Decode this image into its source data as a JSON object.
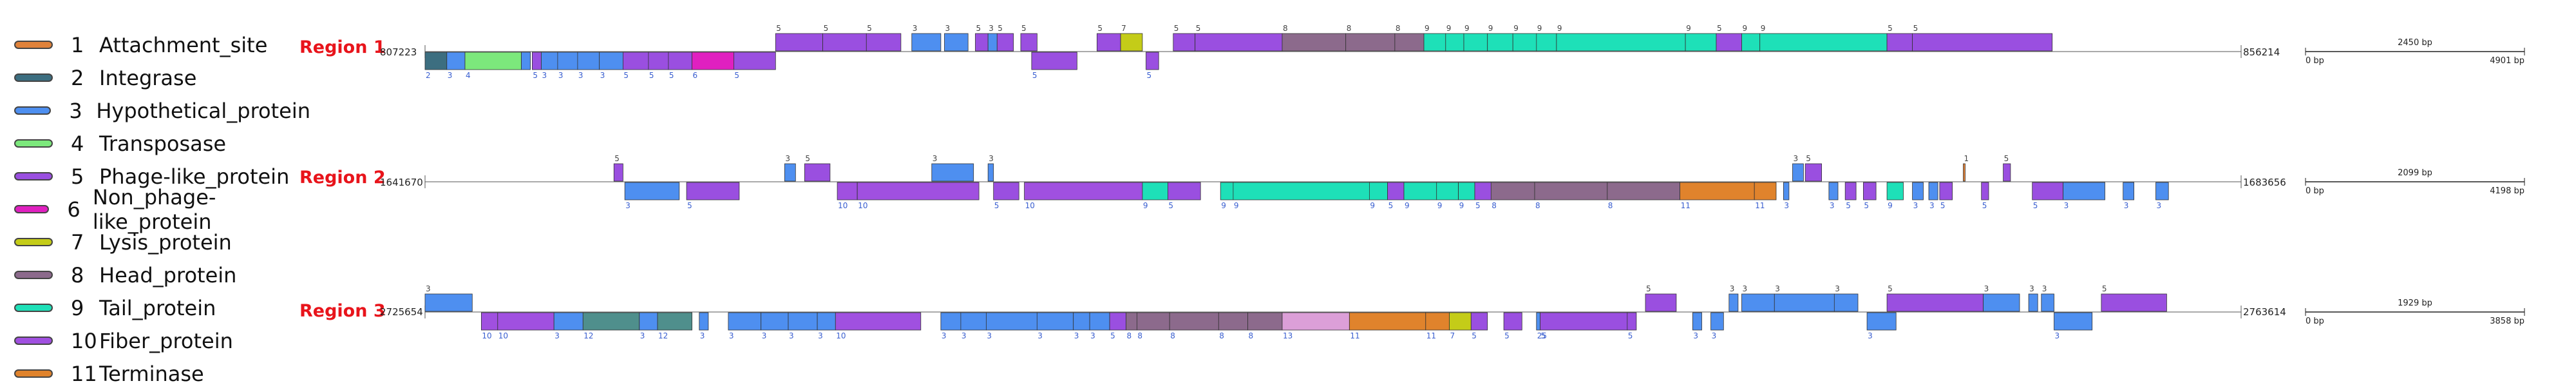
{
  "legend": [
    {
      "num": "1",
      "label": "Attachment_site",
      "color": "#e0823a"
    },
    {
      "num": "2",
      "label": "Integrase",
      "color": "#3c6e80"
    },
    {
      "num": "3",
      "label": "Hypothetical_protein",
      "color": "#4e8ff0"
    },
    {
      "num": "4",
      "label": "Transposase",
      "color": "#7ce87c"
    },
    {
      "num": "5",
      "label": "Phage-like_protein",
      "color": "#9a4fe0"
    },
    {
      "num": "6",
      "label": "Non_phage-like_protein",
      "color": "#e020c0"
    },
    {
      "num": "7",
      "label": "Lysis_protein",
      "color": "#c4cc18"
    },
    {
      "num": "8",
      "label": "Head_protein",
      "color": "#8c6a8c"
    },
    {
      "num": "9",
      "label": "Tail_protein",
      "color": "#1ee0b8"
    },
    {
      "num": "10",
      "label": "Fiber_protein",
      "color": "#a050e0"
    },
    {
      "num": "11",
      "label": "Terminase",
      "color": "#e0832c"
    }
  ],
  "regions": [
    {
      "label": "Region 1",
      "start": "807223",
      "end": "856214",
      "scale": {
        "mid": "2450 bp",
        "left": "0 bp",
        "right": "4901 bp"
      },
      "genes": [
        [
          0,
          1.2,
          "b",
          "2"
        ],
        [
          1.2,
          2.2,
          "b",
          "3"
        ],
        [
          2.2,
          5.3,
          "b",
          "4"
        ],
        [
          5.3,
          5.8,
          "b",
          ""
        ],
        [
          5.9,
          6.4,
          "b",
          "5"
        ],
        [
          6.4,
          7.3,
          "b",
          "3"
        ],
        [
          7.3,
          8.4,
          "b",
          "3"
        ],
        [
          8.4,
          9.6,
          "b",
          "3"
        ],
        [
          9.6,
          10.9,
          "b",
          "3"
        ],
        [
          10.9,
          12.3,
          "b",
          "5"
        ],
        [
          12.3,
          13.4,
          "b",
          "5"
        ],
        [
          13.4,
          14.7,
          "b",
          "5"
        ],
        [
          14.7,
          17.0,
          "b",
          "6"
        ],
        [
          17.0,
          19.3,
          "b",
          "5"
        ],
        [
          19.3,
          21.9,
          "t",
          "5"
        ],
        [
          21.9,
          24.3,
          "t",
          "5"
        ],
        [
          24.3,
          26.2,
          "t",
          "5"
        ],
        [
          26.8,
          28.4,
          "t",
          "3"
        ],
        [
          28.6,
          29.9,
          "t",
          "3"
        ],
        [
          30.3,
          31.0,
          "t",
          "5"
        ],
        [
          31.0,
          31.5,
          "t",
          "3"
        ],
        [
          31.5,
          32.4,
          "t",
          "5"
        ],
        [
          32.8,
          33.7,
          "t",
          "5"
        ],
        [
          33.4,
          35.9,
          "b",
          "5"
        ],
        [
          37.0,
          38.3,
          "t",
          "5"
        ],
        [
          38.3,
          39.5,
          "t",
          "7"
        ],
        [
          39.7,
          40.4,
          "b",
          "5"
        ],
        [
          41.2,
          42.4,
          "t",
          "5"
        ],
        [
          42.4,
          47.2,
          "t",
          "5"
        ],
        [
          47.2,
          50.7,
          "t",
          "8"
        ],
        [
          50.7,
          53.4,
          "t",
          "8"
        ],
        [
          53.4,
          55.0,
          "t",
          "8"
        ],
        [
          55.0,
          56.2,
          "t",
          "9"
        ],
        [
          56.2,
          57.2,
          "t",
          "9"
        ],
        [
          57.2,
          58.5,
          "t",
          "9"
        ],
        [
          58.5,
          59.9,
          "t",
          "9"
        ],
        [
          59.9,
          61.2,
          "t",
          "9"
        ],
        [
          61.2,
          62.3,
          "t",
          "9"
        ],
        [
          62.3,
          69.4,
          "t",
          "9"
        ],
        [
          69.4,
          71.1,
          "t",
          "9"
        ],
        [
          71.1,
          72.5,
          "t",
          "5"
        ],
        [
          72.5,
          73.5,
          "t",
          "9"
        ],
        [
          73.5,
          80.5,
          "t",
          "9"
        ],
        [
          80.5,
          81.9,
          "t",
          "5"
        ],
        [
          81.9,
          89.6,
          "t",
          "5"
        ]
      ]
    },
    {
      "label": "Region 2",
      "start": "1641670",
      "end": "1683656",
      "scale": {
        "mid": "2099 bp",
        "left": "0 bp",
        "right": "4198 bp"
      },
      "genes": [
        [
          10.4,
          10.9,
          "t",
          "5"
        ],
        [
          11.0,
          14.0,
          "b",
          "3"
        ],
        [
          14.4,
          17.3,
          "b",
          "5"
        ],
        [
          19.8,
          20.4,
          "t",
          "3"
        ],
        [
          20.9,
          22.3,
          "t",
          "5"
        ],
        [
          22.7,
          23.8,
          "b",
          "10"
        ],
        [
          23.8,
          30.5,
          "b",
          "10"
        ],
        [
          27.9,
          30.2,
          "t",
          "3"
        ],
        [
          31.0,
          31.3,
          "t",
          "3"
        ],
        [
          31.3,
          32.7,
          "b",
          "5"
        ],
        [
          33.0,
          39.5,
          "b",
          "10"
        ],
        [
          39.5,
          40.9,
          "b",
          "9"
        ],
        [
          40.9,
          42.7,
          "b",
          "5"
        ],
        [
          43.8,
          44.5,
          "b",
          "9"
        ],
        [
          44.5,
          52.0,
          "b",
          "9"
        ],
        [
          52.0,
          53.0,
          "b",
          "9"
        ],
        [
          53.0,
          53.9,
          "b",
          "5"
        ],
        [
          53.9,
          55.7,
          "b",
          "9"
        ],
        [
          55.7,
          56.9,
          "b",
          "9"
        ],
        [
          56.9,
          57.8,
          "b",
          "9"
        ],
        [
          57.8,
          58.7,
          "b",
          "5"
        ],
        [
          58.7,
          61.1,
          "b",
          "8"
        ],
        [
          61.1,
          65.1,
          "b",
          "8"
        ],
        [
          65.1,
          69.1,
          "b",
          "8"
        ],
        [
          69.1,
          73.2,
          "b",
          "11"
        ],
        [
          73.2,
          74.4,
          "b",
          "11"
        ],
        [
          74.8,
          75.1,
          "b",
          "3"
        ],
        [
          75.3,
          75.9,
          "t",
          "3"
        ],
        [
          76.0,
          76.9,
          "t",
          "5"
        ],
        [
          77.3,
          77.8,
          "b",
          "3"
        ],
        [
          78.2,
          78.8,
          "b",
          "5"
        ],
        [
          79.2,
          79.9,
          "b",
          "5"
        ],
        [
          80.5,
          81.4,
          "b",
          "9"
        ],
        [
          81.9,
          82.5,
          "b",
          "3"
        ],
        [
          82.8,
          83.3,
          "b",
          "3"
        ],
        [
          83.4,
          84.1,
          "b",
          "5"
        ],
        [
          84.7,
          84.8,
          "t",
          "1"
        ],
        [
          85.7,
          86.1,
          "b",
          "5"
        ],
        [
          86.9,
          87.3,
          "t",
          "5"
        ],
        [
          88.5,
          90.2,
          "b",
          "5"
        ],
        [
          90.2,
          92.5,
          "b",
          "3"
        ],
        [
          93.5,
          94.1,
          "b",
          "3"
        ],
        [
          95.3,
          96.0,
          "b",
          "3"
        ]
      ]
    },
    {
      "label": "Region 3",
      "start": "2725654",
      "end": "2763614",
      "scale": {
        "mid": "1929 bp",
        "left": "0 bp",
        "right": "3858 bp"
      },
      "genes": [
        [
          0,
          2.6,
          "t",
          "3"
        ],
        [
          3.1,
          4.0,
          "b",
          "10"
        ],
        [
          4.0,
          7.1,
          "b",
          "10"
        ],
        [
          7.1,
          8.7,
          "b",
          "3"
        ],
        [
          8.7,
          11.8,
          "b",
          "12"
        ],
        [
          11.8,
          12.8,
          "b",
          "3"
        ],
        [
          12.8,
          14.7,
          "b",
          "12"
        ],
        [
          15.1,
          15.6,
          "b",
          "3"
        ],
        [
          16.7,
          18.5,
          "b",
          "3"
        ],
        [
          18.5,
          20.0,
          "b",
          "3"
        ],
        [
          20.0,
          21.6,
          "b",
          "3"
        ],
        [
          21.6,
          22.6,
          "b",
          "3"
        ],
        [
          22.6,
          27.3,
          "b",
          "10"
        ],
        [
          28.4,
          29.5,
          "b",
          "3"
        ],
        [
          29.5,
          30.9,
          "b",
          "3"
        ],
        [
          30.9,
          33.7,
          "b",
          "3"
        ],
        [
          33.7,
          35.7,
          "b",
          "3"
        ],
        [
          35.7,
          36.6,
          "b",
          "3"
        ],
        [
          36.6,
          37.7,
          "b",
          "3"
        ],
        [
          37.7,
          38.6,
          "b",
          "5"
        ],
        [
          38.6,
          39.2,
          "b",
          "8"
        ],
        [
          39.2,
          41.0,
          "b",
          "8"
        ],
        [
          41.0,
          43.7,
          "b",
          "8"
        ],
        [
          43.7,
          45.3,
          "b",
          "8"
        ],
        [
          45.3,
          47.2,
          "b",
          "8"
        ],
        [
          47.2,
          50.9,
          "b",
          "13"
        ],
        [
          50.9,
          55.1,
          "b",
          "11"
        ],
        [
          55.1,
          56.4,
          "b",
          "11"
        ],
        [
          56.4,
          57.6,
          "b",
          "7"
        ],
        [
          57.6,
          58.5,
          "b",
          "5"
        ],
        [
          59.4,
          60.4,
          "b",
          "5"
        ],
        [
          61.2,
          61.4,
          "b",
          "25"
        ],
        [
          61.4,
          66.2,
          "b",
          "5"
        ],
        [
          66.2,
          66.7,
          "b",
          "5"
        ],
        [
          67.2,
          68.9,
          "t",
          "5"
        ],
        [
          69.8,
          70.3,
          "b",
          "3"
        ],
        [
          70.8,
          71.5,
          "b",
          "3"
        ],
        [
          71.8,
          72.3,
          "t",
          "3"
        ],
        [
          72.5,
          74.3,
          "t",
          "3"
        ],
        [
          74.3,
          77.6,
          "t",
          "3"
        ],
        [
          77.6,
          78.9,
          "t",
          "3"
        ],
        [
          79.4,
          81.0,
          "b",
          "3"
        ],
        [
          80.5,
          85.8,
          "t",
          "5"
        ],
        [
          85.8,
          87.8,
          "t",
          "3"
        ],
        [
          88.3,
          88.8,
          "t",
          "3"
        ],
        [
          89.0,
          89.7,
          "t",
          "3"
        ],
        [
          89.7,
          91.8,
          "b",
          "3"
        ],
        [
          92.3,
          95.9,
          "t",
          "5"
        ]
      ]
    }
  ]
}
